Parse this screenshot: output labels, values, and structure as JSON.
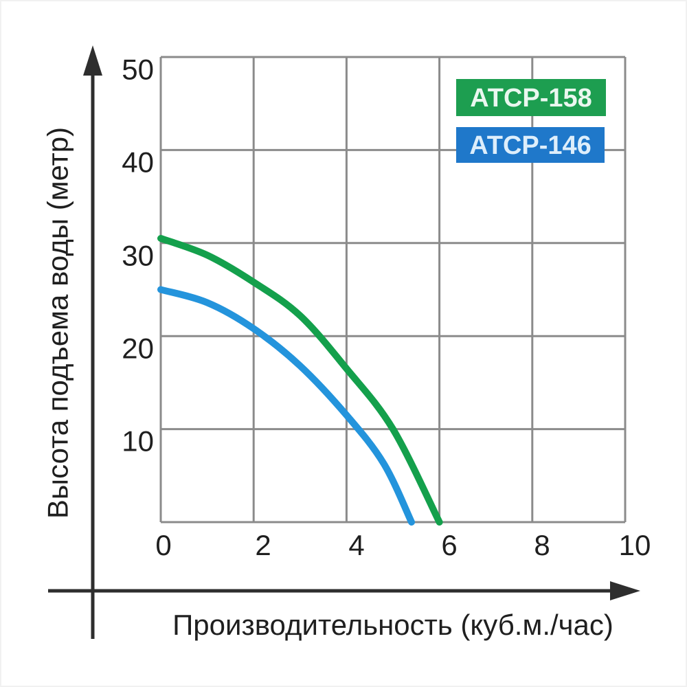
{
  "page": {
    "background": "#ffffff"
  },
  "colors": {
    "grid": "#8b8b8b",
    "axis_arrow": "#2e2e2e",
    "axis_text": "#1f1f1f",
    "green_series": "#14a04c",
    "blue_series": "#2494dc"
  },
  "legend": {
    "items": [
      {
        "label": "АТСР-158",
        "color": "#1d9e50",
        "text_color": "#eaf7ef"
      },
      {
        "label": "АТСР-146",
        "color": "#1f78ca",
        "text_color": "#ddeefb"
      }
    ]
  },
  "chart_data": {
    "type": "line",
    "title": "",
    "xlabel": "Производительность (куб.м./час)",
    "ylabel": "Высота подъема воды (метр)",
    "xlim": [
      0,
      10
    ],
    "ylim": [
      0,
      50
    ],
    "xticks": [
      "0",
      "2",
      "4",
      "6",
      "8",
      "10"
    ],
    "yticks": [
      "50",
      "40",
      "30",
      "20",
      "10"
    ],
    "grid": true,
    "legend_position": "top-right",
    "series": [
      {
        "name": "АТСР-158",
        "color": "#14a04c",
        "points": [
          [
            0,
            30.5
          ],
          [
            1,
            28.7
          ],
          [
            2,
            25.8
          ],
          [
            3,
            22.2
          ],
          [
            4,
            16.5
          ],
          [
            5,
            10.0
          ],
          [
            6,
            0
          ]
        ]
      },
      {
        "name": "АТСР-146",
        "color": "#2494dc",
        "points": [
          [
            0,
            25.0
          ],
          [
            1,
            23.6
          ],
          [
            2,
            20.8
          ],
          [
            3,
            16.8
          ],
          [
            4,
            11.5
          ],
          [
            4.8,
            6.3
          ],
          [
            5.4,
            0
          ]
        ]
      }
    ]
  }
}
